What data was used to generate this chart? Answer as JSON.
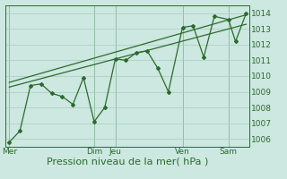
{
  "title": "",
  "xlabel": "Pression niveau de la mer( hPa )",
  "bg_color": "#cce8e0",
  "grid_color": "#a8ccbe",
  "line_color": "#2d6a2d",
  "ylim": [
    1005.5,
    1014.5
  ],
  "xlim": [
    0,
    138
  ],
  "xtick_positions": [
    2,
    50,
    62,
    100,
    126
  ],
  "xtick_labels": [
    "Mer",
    "Dim",
    "Jeu",
    "Ven",
    "Sam"
  ],
  "ytick_positions": [
    1006,
    1007,
    1008,
    1009,
    1010,
    1011,
    1012,
    1013,
    1014
  ],
  "ytick_labels": [
    "1006",
    "1007",
    "1008",
    "1009",
    "1010",
    "1011",
    "1012",
    "1013",
    "1014"
  ],
  "series1_x": [
    2,
    8,
    14,
    20,
    26,
    32,
    38,
    44,
    50,
    56,
    62,
    68,
    74,
    80,
    86,
    92,
    100,
    106,
    112,
    118,
    126,
    130,
    136
  ],
  "series1_y": [
    1005.8,
    1006.5,
    1009.4,
    1009.5,
    1008.9,
    1008.7,
    1008.2,
    1009.9,
    1007.1,
    1008.0,
    1011.1,
    1011.0,
    1011.5,
    1011.6,
    1010.5,
    1009.0,
    1013.1,
    1013.2,
    1011.2,
    1013.8,
    1013.6,
    1012.2,
    1014.0
  ],
  "series2_x": [
    2,
    136
  ],
  "series2_y": [
    1009.3,
    1013.3
  ],
  "series3_x": [
    2,
    136
  ],
  "series3_y": [
    1009.6,
    1013.9
  ],
  "vline_positions": [
    2,
    50,
    62,
    100,
    126
  ],
  "fontsize_xlabel": 8.0,
  "fontsize_tick": 6.5
}
